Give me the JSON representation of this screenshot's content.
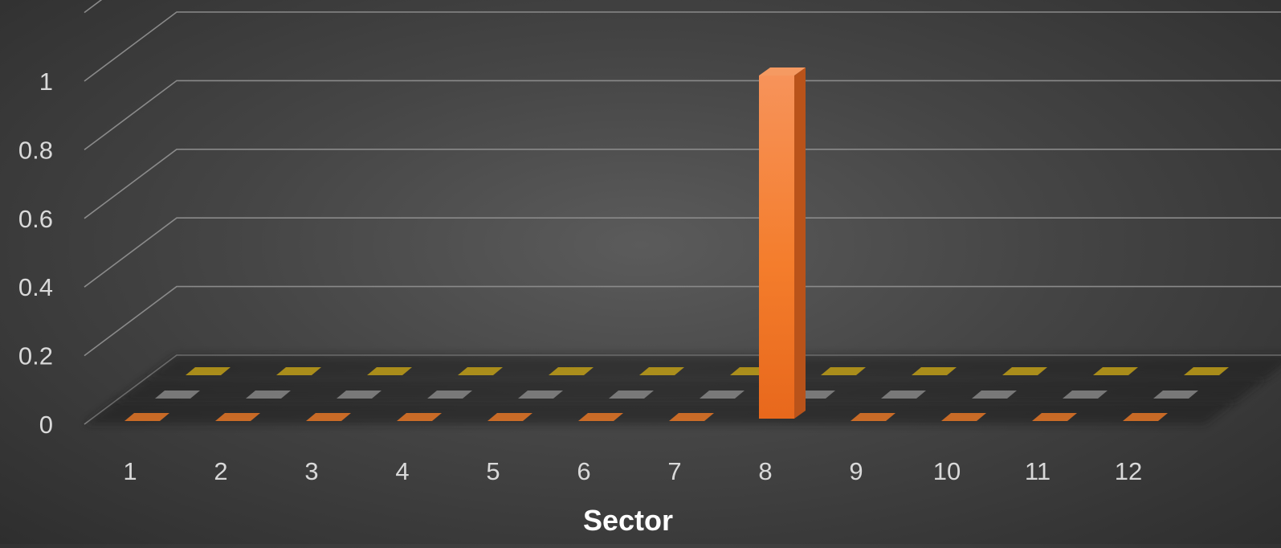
{
  "chart_data": {
    "type": "bar",
    "projection": "3d",
    "xlabel": "Sector",
    "ylabel": "",
    "ylim": [
      0,
      1.2
    ],
    "yticks": [
      "0",
      "0.2",
      "0.4",
      "0.6",
      "0.8",
      "1"
    ],
    "categories": [
      "1",
      "2",
      "3",
      "4",
      "5",
      "6",
      "7",
      "8",
      "9",
      "10",
      "11",
      "12"
    ],
    "grid": true,
    "legend": "none",
    "series": [
      {
        "color": "#f07a25",
        "values": [
          0,
          0,
          0,
          0,
          0,
          0,
          0,
          1,
          0,
          0,
          0,
          0
        ]
      },
      {
        "color": "#8c8c8c",
        "values": [
          0,
          0,
          0,
          0,
          0,
          0,
          0,
          0,
          0,
          0,
          0,
          0
        ]
      },
      {
        "color": "#c9a516",
        "values": [
          0,
          0,
          0,
          0,
          0,
          0,
          0,
          0,
          0,
          0,
          0,
          0
        ]
      }
    ]
  }
}
